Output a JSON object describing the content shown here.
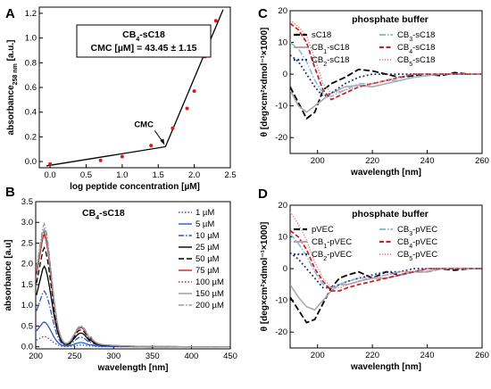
{
  "chart_data": [
    {
      "panel": "A",
      "type": "scatter",
      "xlabel": "log peptide concentration [µM]",
      "ylabel": "absorbance",
      "ylabel_sub": "258 nm",
      "ylabel_unit": " [a.u.]",
      "xlim": [
        -0.15,
        2.5
      ],
      "ylim": [
        -0.05,
        1.25
      ],
      "xticks": [
        0.0,
        0.5,
        1.0,
        1.5,
        2.0,
        2.5
      ],
      "yticks": [
        0.0,
        0.2,
        0.4,
        0.6,
        0.8,
        1.0,
        1.2
      ],
      "title": "CB",
      "title_sub": "4",
      "title_rest": "-sC18",
      "box_line2": "CMC [µM] = 43.45 ± 1.15",
      "annotation": "CMC",
      "points": [
        {
          "x": 0.0,
          "y": -0.02
        },
        {
          "x": 0.7,
          "y": 0.01
        },
        {
          "x": 1.0,
          "y": 0.04
        },
        {
          "x": 1.4,
          "y": 0.13
        },
        {
          "x": 1.7,
          "y": 0.27
        },
        {
          "x": 1.9,
          "y": 0.43
        },
        {
          "x": 2.0,
          "y": 0.57
        },
        {
          "x": 2.15,
          "y": 0.85
        },
        {
          "x": 2.3,
          "y": 1.14
        }
      ],
      "fit": [
        {
          "x": -0.05,
          "y": -0.035
        },
        {
          "x": 1.6,
          "y": 0.12
        },
        {
          "x": 2.4,
          "y": 1.23
        }
      ]
    },
    {
      "panel": "B",
      "type": "line",
      "xlabel": "wavelength [nm]",
      "ylabel": "absorbance [a.u]",
      "xlim": [
        200,
        450
      ],
      "ylim": [
        -0.05,
        3.5
      ],
      "xticks": [
        200,
        250,
        300,
        350,
        400,
        450
      ],
      "yticks": [
        0.0,
        0.5,
        1.0,
        1.5,
        2.0,
        2.5,
        3.0,
        3.5
      ],
      "title": "CB",
      "title_sub": "4",
      "title_rest": "-sC18",
      "series": [
        {
          "name": "1 µM",
          "peak": 0.25,
          "color": "#2b57c7",
          "dash": "1.5,2"
        },
        {
          "name": "5 µM",
          "peak": 0.6,
          "color": "#2b57c7",
          "dash": ""
        },
        {
          "name": "10 µM",
          "peak": 1.35,
          "color": "#2b57c7",
          "dash": "6,2,1.5,2"
        },
        {
          "name": "25 µM",
          "peak": 1.95,
          "color": "#000000",
          "dash": ""
        },
        {
          "name": "50 µM",
          "peak": 2.4,
          "color": "#000000",
          "dash": "6,3"
        },
        {
          "name": "75 µM",
          "peak": 2.72,
          "color": "#c0272d",
          "dash": ""
        },
        {
          "name": "100 µM",
          "peak": 2.78,
          "color": "#c0272d",
          "dash": "1.5,2"
        },
        {
          "name": "150 µM",
          "peak": 2.85,
          "color": "#999999",
          "dash": ""
        },
        {
          "name": "200 µM",
          "peak": 2.98,
          "color": "#999999",
          "dash": "6,2,1.5,2"
        }
      ]
    },
    {
      "panel": "C",
      "type": "line",
      "title": "phosphate buffer",
      "xlabel": "wavelength [nm]",
      "ylabel": "θ [deg×cm²×dmol⁻¹×1000]",
      "xlim": [
        190,
        260
      ],
      "ylim": [
        -25,
        20
      ],
      "xticks": [
        200,
        220,
        240,
        260
      ],
      "yticks": [
        -20,
        -10,
        0,
        10,
        20
      ],
      "legend": [
        {
          "base": "sC18",
          "sub": "",
          "rest": ""
        },
        {
          "base": "CB",
          "sub": "1",
          "rest": "-sC18"
        },
        {
          "base": "CB",
          "sub": "2",
          "rest": "-sC18"
        },
        {
          "base": "CB",
          "sub": "3",
          "rest": "-sC18"
        },
        {
          "base": "CB",
          "sub": "4",
          "rest": "-sC18"
        },
        {
          "base": "CB",
          "sub": "5",
          "rest": "-sC18"
        }
      ],
      "series": [
        {
          "name": "sC18",
          "color": "#000000",
          "dash": "7,3",
          "width": 1.8,
          "x": [
            190,
            193,
            196,
            199,
            202,
            205,
            210,
            215,
            220,
            225,
            230,
            235,
            240,
            245,
            250,
            255,
            260
          ],
          "y": [
            -4,
            -9,
            -14,
            -12,
            -5,
            -3,
            -1,
            1.5,
            1,
            0,
            -1,
            -0.5,
            0,
            -0.5,
            0.5,
            0,
            0
          ]
        },
        {
          "name": "CB1-sC18",
          "color": "#aaaaaa",
          "dash": "",
          "width": 1.6,
          "x": [
            190,
            193,
            196,
            199,
            202,
            205,
            210,
            215,
            220,
            225,
            230,
            235,
            240,
            245,
            250,
            255,
            260
          ],
          "y": [
            -5,
            -10,
            -12,
            -10,
            -8,
            -6,
            -4,
            -3.5,
            -4,
            -3,
            -2,
            -1,
            -0.5,
            0,
            0,
            0,
            0
          ]
        },
        {
          "name": "CB2-sC18",
          "color": "#1f2f7a",
          "dash": "1.8,2.6",
          "width": 1.8,
          "x": [
            190,
            193,
            196,
            199,
            202,
            205,
            210,
            215,
            220,
            225,
            230,
            235,
            240,
            245,
            250,
            255,
            260
          ],
          "y": [
            6,
            4,
            0,
            -4,
            -7,
            -6,
            -3,
            -1,
            0,
            0,
            0,
            0,
            0,
            0,
            0,
            0,
            0
          ]
        },
        {
          "name": "CB3-sC18",
          "color": "#8fbcd9",
          "dash": "7,2,1.5,2",
          "width": 1.6,
          "x": [
            190,
            193,
            196,
            199,
            202,
            205,
            210,
            215,
            220,
            225,
            230,
            235,
            240,
            245,
            250,
            255,
            260
          ],
          "y": [
            10,
            8,
            4,
            -2,
            -6,
            -7,
            -5,
            -3,
            -3,
            -2,
            -2,
            -1,
            0,
            0,
            0,
            0,
            0
          ]
        },
        {
          "name": "CB4-sC18",
          "color": "#c0272d",
          "dash": "5,2.5",
          "width": 1.8,
          "x": [
            190,
            193,
            196,
            199,
            202,
            205,
            210,
            215,
            220,
            225,
            230,
            235,
            240,
            245,
            250,
            255,
            260
          ],
          "y": [
            16,
            14,
            10,
            2,
            -5,
            -8,
            -6,
            -4,
            -3,
            -2,
            -1,
            0,
            0,
            0,
            0,
            0,
            0
          ]
        },
        {
          "name": "CB5-sC18",
          "color": "#e07a7a",
          "dash": "1.2,1.8",
          "width": 1.4,
          "x": [
            190,
            193,
            196,
            199,
            202,
            205,
            210,
            215,
            220,
            225,
            230,
            235,
            240,
            245,
            250,
            255,
            260
          ],
          "y": [
            17,
            15,
            12,
            5,
            -3,
            -6,
            -5,
            -4,
            -3,
            -2,
            -1,
            0,
            0,
            0,
            0,
            0,
            0
          ]
        }
      ]
    },
    {
      "panel": "D",
      "type": "line",
      "title": "phosphate buffer",
      "xlabel": "wavelength [nm]",
      "ylabel": "θ [deg×cm²×dmol⁻¹×1000]",
      "xlim": [
        190,
        260
      ],
      "ylim": [
        -25,
        20
      ],
      "xticks": [
        200,
        220,
        240,
        260
      ],
      "yticks": [
        -20,
        -10,
        0,
        10,
        20
      ],
      "legend": [
        {
          "base": "pVEC",
          "sub": "",
          "rest": ""
        },
        {
          "base": "CB",
          "sub": "1",
          "rest": "-pVEC"
        },
        {
          "base": "CB",
          "sub": "2",
          "rest": "-pVEC"
        },
        {
          "base": "CB",
          "sub": "3",
          "rest": "-pVEC"
        },
        {
          "base": "CB",
          "sub": "4",
          "rest": "-pVEC"
        },
        {
          "base": "CB",
          "sub": "5",
          "rest": "-pVEC"
        }
      ],
      "series": [
        {
          "name": "pVEC",
          "color": "#000000",
          "dash": "7,3",
          "width": 1.8,
          "x": [
            190,
            193,
            196,
            199,
            202,
            205,
            208,
            211,
            215,
            220,
            225,
            230,
            235,
            240,
            245,
            250,
            255,
            260
          ],
          "y": [
            -9,
            -13,
            -17,
            -16,
            -11,
            -6,
            -3,
            -2,
            -1,
            -3,
            -1,
            -2,
            -1,
            -1,
            0,
            -0.5,
            0,
            0
          ]
        },
        {
          "name": "CB1-pVEC",
          "color": "#aaaaaa",
          "dash": "",
          "width": 1.6,
          "x": [
            190,
            193,
            196,
            199,
            202,
            205,
            208,
            211,
            215,
            220,
            225,
            230,
            235,
            240,
            245,
            250,
            255,
            260
          ],
          "y": [
            -5,
            -9,
            -12,
            -13,
            -10,
            -7,
            -5,
            -5,
            -4,
            -3,
            -3,
            -2,
            -1,
            -1,
            0,
            0,
            0,
            0
          ]
        },
        {
          "name": "CB2-pVEC",
          "color": "#1f2f7a",
          "dash": "1.8,2.6",
          "width": 1.8,
          "x": [
            190,
            193,
            196,
            199,
            202,
            205,
            208,
            211,
            215,
            220,
            225,
            230,
            235,
            240,
            245,
            250,
            255,
            260
          ],
          "y": [
            5,
            3,
            0,
            -3,
            -6,
            -6,
            -5,
            -4,
            -3,
            -2,
            -1,
            -1,
            0,
            0,
            0,
            0,
            0,
            0
          ]
        },
        {
          "name": "CB3-pVEC",
          "color": "#8fbcd9",
          "dash": "7,2,1.5,2",
          "width": 1.6,
          "x": [
            190,
            193,
            196,
            199,
            202,
            205,
            208,
            211,
            215,
            220,
            225,
            230,
            235,
            240,
            245,
            250,
            255,
            260
          ],
          "y": [
            11,
            8,
            4,
            -1,
            -5,
            -6,
            -5,
            -4,
            -3,
            -3,
            -2,
            -1,
            -1,
            0,
            0,
            0,
            0,
            0
          ]
        },
        {
          "name": "CB4-pVEC",
          "color": "#c0272d",
          "dash": "5,2.5",
          "width": 1.8,
          "x": [
            190,
            193,
            196,
            199,
            202,
            205,
            208,
            211,
            215,
            220,
            225,
            230,
            235,
            240,
            245,
            250,
            255,
            260
          ],
          "y": [
            12,
            10,
            6,
            0,
            -4,
            -7,
            -7,
            -6,
            -5,
            -4,
            -3,
            -2,
            -1,
            0,
            0,
            0,
            0,
            0
          ]
        },
        {
          "name": "CB5-pVEC",
          "color": "#e07a7a",
          "dash": "1.2,1.8",
          "width": 1.4,
          "x": [
            190,
            193,
            196,
            199,
            202,
            205,
            208,
            211,
            215,
            220,
            225,
            230,
            235,
            240,
            245,
            250,
            255,
            260
          ],
          "y": [
            18,
            14,
            9,
            2,
            -3,
            -6,
            -6,
            -5,
            -4,
            -3,
            -2,
            -1,
            -1,
            0,
            0,
            0,
            0,
            0
          ]
        }
      ]
    }
  ]
}
